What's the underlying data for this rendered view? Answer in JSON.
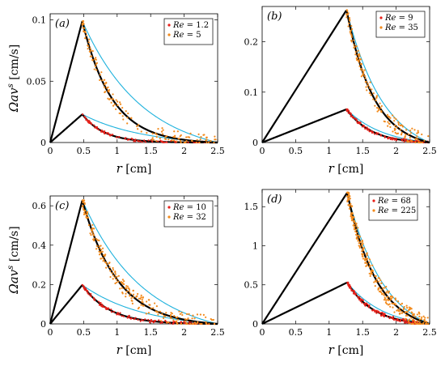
{
  "colors": {
    "model": "#000000",
    "reference": "#1fb2dd",
    "data_low": "#e8201a",
    "data_high": "#f28a1c"
  },
  "chart_data": [
    {
      "type": "line",
      "panel_label": "(a)",
      "xlabel": "r [cm]",
      "ylabel": "Ωav^s [cm/s]",
      "xlim": [
        0,
        2.5
      ],
      "ylim": [
        0,
        0.105
      ],
      "xticks": [
        "0",
        "0.5",
        "1",
        "1.5",
        "2",
        "2.5"
      ],
      "yticks": [
        "0",
        "0.05",
        "0.1"
      ],
      "ytick_values": [
        0,
        0.05,
        0.1
      ],
      "legend": {
        "position": "top-right",
        "entries": [
          "Re = 1.2",
          "Re = 5"
        ]
      },
      "peak_r": 0.48,
      "series": [
        {
          "name": "Re = 1.2",
          "peak": 0.023,
          "decay": 0.16,
          "points": 90
        },
        {
          "name": "Re = 5",
          "peak": 0.099,
          "decay": 0.22,
          "points": 150
        }
      ]
    },
    {
      "type": "line",
      "panel_label": "(b)",
      "xlabel": "r [cm]",
      "ylabel": "",
      "xlim": [
        0,
        2.5
      ],
      "ylim": [
        0,
        0.27
      ],
      "xticks": [
        "0",
        "0.5",
        "1",
        "1.5",
        "2",
        "2.5"
      ],
      "yticks": [
        "0",
        "0.1",
        "0.2"
      ],
      "ytick_values": [
        0,
        0.1,
        0.2
      ],
      "legend": {
        "position": "top-right",
        "entries": [
          "Re = 9",
          "Re = 35"
        ]
      },
      "peak_r": 1.26,
      "series": [
        {
          "name": "Re = 9",
          "peak": 0.066,
          "decay": 0.3,
          "points": 110
        },
        {
          "name": "Re = 35",
          "peak": 0.263,
          "decay": 0.33,
          "points": 160
        }
      ]
    },
    {
      "type": "line",
      "panel_label": "(c)",
      "xlabel": "r [cm]",
      "ylabel": "Ωav^s [cm/s]",
      "xlim": [
        0,
        2.5
      ],
      "ylim": [
        0,
        0.65
      ],
      "xticks": [
        "0",
        "0.5",
        "1",
        "1.5",
        "2",
        "2.5"
      ],
      "yticks": [
        "0",
        "0.2",
        "0.4",
        "0.6"
      ],
      "ytick_values": [
        0,
        0.2,
        0.4,
        0.6
      ],
      "legend": {
        "position": "top-right",
        "entries": [
          "Re = 10",
          "Re = 32"
        ]
      },
      "peak_r": 0.48,
      "series": [
        {
          "name": "Re = 10",
          "peak": 0.198,
          "decay": 0.2,
          "points": 120
        },
        {
          "name": "Re = 32",
          "peak": 0.628,
          "decay": 0.26,
          "points": 220
        }
      ]
    },
    {
      "type": "line",
      "panel_label": "(d)",
      "xlabel": "r [cm]",
      "ylabel": "",
      "xlim": [
        0,
        2.5
      ],
      "ylim": [
        0,
        1.72
      ],
      "xticks": [
        "0",
        "0.5",
        "1",
        "1.5",
        "2",
        "2.5"
      ],
      "yticks": [
        "0",
        "0.5",
        "1",
        "1.5"
      ],
      "ytick_values": [
        0,
        0.5,
        1,
        1.5
      ],
      "legend": {
        "position": "top-left",
        "entries": [
          "Re = 68",
          "Re = 225"
        ]
      },
      "peak_r": 1.27,
      "series": [
        {
          "name": "Re = 68",
          "peak": 0.53,
          "decay": 0.32,
          "points": 130
        },
        {
          "name": "Re = 225",
          "peak": 1.68,
          "decay": 0.36,
          "points": 280
        }
      ]
    }
  ]
}
